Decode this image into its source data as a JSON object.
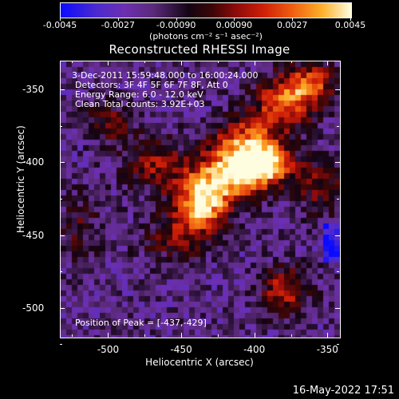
{
  "colorbar": {
    "ticks": [
      "-0.0045",
      "-0.0027",
      "-0.00090",
      "0.00090",
      "0.0027",
      "0.0045"
    ],
    "unit": "(photons cm⁻² s⁻¹ asec⁻²)",
    "range": [
      -0.0045,
      0.0045
    ]
  },
  "info": {
    "time": "3-Dec-2011 15:59:48.000 to 16:00:24.000",
    "detectors": "Detectors: 3F 4F 5F 6F 7F 8F, Att 0",
    "energy": "Energy Range: 6.0 - 12.0 keV",
    "clean": "Clean     Total counts: 3.92E+03",
    "peak": "Position of Peak = [-437,-429]"
  },
  "datestamp": "16-May-2022 17:51",
  "chart_data": {
    "type": "heatmap",
    "title": "Reconstructed RHESSI Image",
    "xlabel": "Heliocentric X (arcsec)",
    "ylabel": "Heliocentric Y (arcsec)",
    "xlim": [
      -533,
      -342
    ],
    "ylim": [
      -520,
      -330
    ],
    "xticks": [
      "-500",
      "-450",
      "-400",
      "-350"
    ],
    "yticks": [
      "-350",
      "-400",
      "-450",
      "-500"
    ],
    "peak": [
      -437,
      -429
    ],
    "sources": [
      {
        "x": -437,
        "y": -429,
        "amp": 0.0045,
        "sx": 14,
        "sy": 12
      },
      {
        "x": -420,
        "y": -408,
        "amp": 0.004,
        "sx": 18,
        "sy": 12
      },
      {
        "x": -395,
        "y": -402,
        "amp": 0.0042,
        "sx": 14,
        "sy": 10
      },
      {
        "x": -405,
        "y": -385,
        "amp": 0.0032,
        "sx": 16,
        "sy": 12
      },
      {
        "x": -380,
        "y": -358,
        "amp": 0.0034,
        "sx": 14,
        "sy": 12
      },
      {
        "x": -362,
        "y": -345,
        "amp": 0.0028,
        "sx": 12,
        "sy": 10
      },
      {
        "x": -470,
        "y": -400,
        "amp": 0.0022,
        "sx": 14,
        "sy": 12
      },
      {
        "x": -455,
        "y": -452,
        "amp": 0.0018,
        "sx": 16,
        "sy": 10
      },
      {
        "x": -500,
        "y": -372,
        "amp": 0.0016,
        "sx": 12,
        "sy": 10
      },
      {
        "x": -380,
        "y": -488,
        "amp": 0.0026,
        "sx": 12,
        "sy": 12
      },
      {
        "x": -355,
        "y": -415,
        "amp": 0.0018,
        "sx": 12,
        "sy": 14
      },
      {
        "x": -520,
        "y": -445,
        "amp": 0.0012,
        "sx": 10,
        "sy": 18
      }
    ]
  }
}
